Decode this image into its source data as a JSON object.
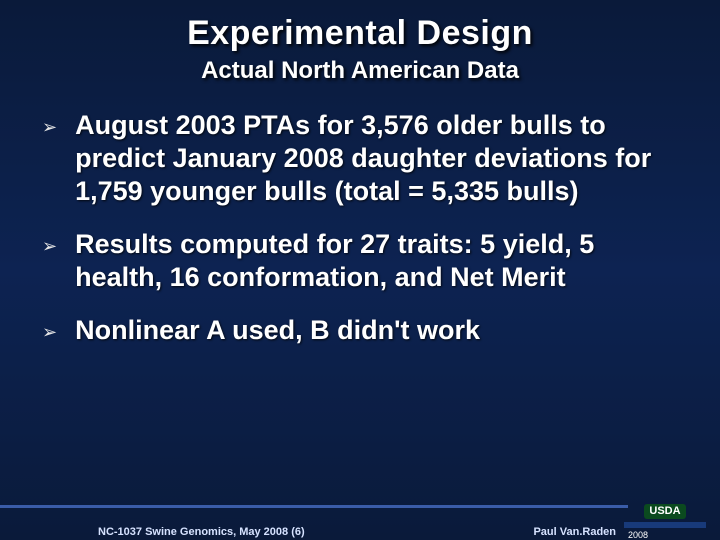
{
  "slide": {
    "title": "Experimental Design",
    "subtitle": "Actual North American Data",
    "title_fontsize": 34,
    "subtitle_fontsize": 24,
    "title_color": "#ffffff",
    "background_gradient": [
      "#0a1a3a",
      "#0d2352",
      "#0a1a3a"
    ]
  },
  "bullets": [
    {
      "text": "August 2003 PTAs for 3,576 older bulls to predict January 2008 daughter deviations for 1,759 younger bulls  (total = 5,335 bulls)"
    },
    {
      "text": "Results computed for 27 traits: 5 yield, 5 health, 16 conformation, and Net Merit"
    },
    {
      "text": "Nonlinear A used, B didn't work"
    }
  ],
  "bullet_style": {
    "marker": "➢",
    "marker_color": "#e6e6e6",
    "text_fontsize": 27,
    "text_color": "#ffffff",
    "text_weight": "bold"
  },
  "footer": {
    "left_text": "NC-1037 Swine Genomics, May 2008 (6)",
    "right_text": "Paul Van.Raden",
    "line_color": "#3a5ca8",
    "text_color": "#d6e2ff",
    "text_fontsize": 11
  },
  "logo": {
    "label": "USDA",
    "label_bg": "#0b4a1f",
    "bar_color": "#183a7a",
    "year": "2008"
  }
}
